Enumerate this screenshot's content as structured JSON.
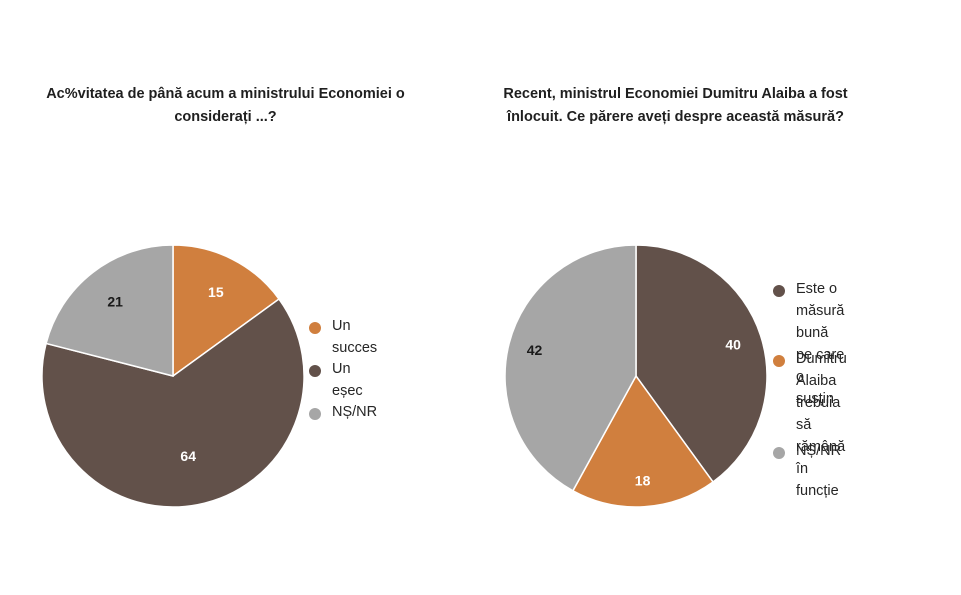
{
  "chart_data": [
    {
      "type": "pie",
      "title": "Ac%vitatea de până acum a ministrului Economiei o considerați ...?",
      "title_lines": [
        "Ac%vitatea de până acum a ministrului Economiei o",
        "considerați ...?"
      ],
      "legend_position": "right",
      "slices": [
        {
          "label": "Un succes",
          "label_lines": [
            "Un succes"
          ],
          "value": 15,
          "color": "#d07f3e",
          "text_color": "#ffffff"
        },
        {
          "label": "Un eșec",
          "label_lines": [
            "Un eșec"
          ],
          "value": 64,
          "color": "#62514a",
          "text_color": "#ffffff"
        },
        {
          "label": "NȘ/NR",
          "label_lines": [
            "NȘ/NR"
          ],
          "value": 21,
          "color": "#a6a6a6",
          "text_color": "#1a1a1a"
        }
      ]
    },
    {
      "type": "pie",
      "title": "Recent, ministrul Economiei Dumitru Alaiba a fost înlocuit. Ce părere aveți despre această măsură?",
      "title_lines": [
        "Recent, ministrul Economiei Dumitru Alaiba a fost",
        "înlocuit. Ce părere aveți despre această măsură?"
      ],
      "legend_position": "right",
      "slices": [
        {
          "label": "Este o măsură bună pe care o susțin",
          "label_lines": [
            "Este o măsură bună",
            "pe care o susțin"
          ],
          "value": 40,
          "color": "#62514a",
          "text_color": "#ffffff"
        },
        {
          "label": "Dumitru Alaiba trebuia să rămână în funcție",
          "label_lines": [
            "Dumitru Alaiba",
            "trebuia să rămână în",
            "funcție"
          ],
          "value": 18,
          "color": "#d07f3e",
          "text_color": "#ffffff"
        },
        {
          "label": "NȘ/NR",
          "label_lines": [
            "NȘ/NR"
          ],
          "value": 42,
          "color": "#a6a6a6",
          "text_color": "#1a1a1a"
        }
      ]
    }
  ]
}
